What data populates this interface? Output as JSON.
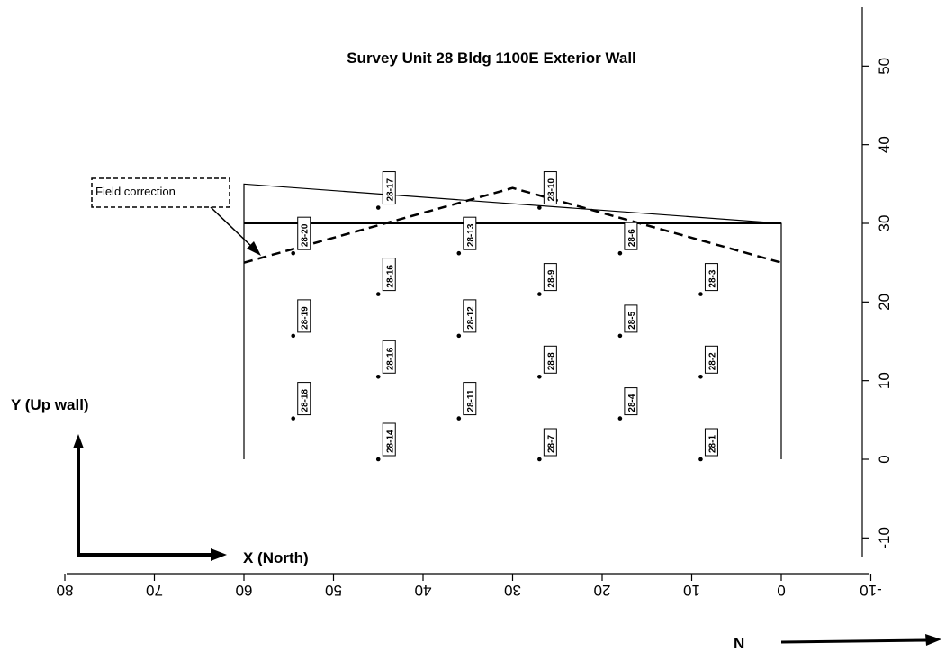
{
  "title": "Survey Unit 28 Bldg 1100E Exterior Wall",
  "x_axis_label": "X (North)",
  "y_axis_label": "Y (Up wall)",
  "north_label": "N",
  "callout": "Field correction",
  "chart_data": {
    "type": "scatter",
    "x_ticks": [
      80,
      70,
      60,
      50,
      40,
      30,
      20,
      10,
      0,
      -10
    ],
    "y_ticks": [
      50,
      40,
      30,
      20,
      10,
      0,
      -10
    ],
    "x_tick_labels": [
      "80",
      "70",
      "60",
      "50",
      "40",
      "30",
      "20",
      "10",
      "0",
      "-10"
    ],
    "y_tick_labels": [
      "50",
      "40",
      "30",
      "20",
      "10",
      "0",
      "-10"
    ],
    "xlim": [
      80,
      -10
    ],
    "ylim": [
      -10,
      55
    ],
    "wall_outline": [
      [
        60,
        0
      ],
      [
        60,
        35
      ],
      [
        0,
        30
      ],
      [
        0,
        0
      ]
    ],
    "inner_line": [
      [
        60,
        30
      ],
      [
        0,
        30
      ]
    ],
    "field_correction": [
      [
        60,
        25
      ],
      [
        30,
        34.5
      ],
      [
        0,
        25
      ]
    ],
    "points": [
      {
        "label": "28-1",
        "x": 9,
        "y": 0
      },
      {
        "label": "28-2",
        "x": 9,
        "y": 10.5
      },
      {
        "label": "28-3",
        "x": 9,
        "y": 21
      },
      {
        "label": "28-4",
        "x": 18,
        "y": 5.2
      },
      {
        "label": "28-5",
        "x": 18,
        "y": 15.7
      },
      {
        "label": "28-6",
        "x": 18,
        "y": 26.2
      },
      {
        "label": "28-7",
        "x": 27,
        "y": 0
      },
      {
        "label": "28-8",
        "x": 27,
        "y": 10.5
      },
      {
        "label": "28-9",
        "x": 27,
        "y": 21
      },
      {
        "label": "28-10",
        "x": 27,
        "y": 32
      },
      {
        "label": "28-11",
        "x": 36,
        "y": 5.2
      },
      {
        "label": "28-12",
        "x": 36,
        "y": 15.7
      },
      {
        "label": "28-13",
        "x": 36,
        "y": 26.2
      },
      {
        "label": "28-14",
        "x": 45,
        "y": 0
      },
      {
        "label": "28-16",
        "x": 45,
        "y": 10.5
      },
      {
        "label": "28-16",
        "x": 45,
        "y": 21
      },
      {
        "label": "28-17",
        "x": 45,
        "y": 32
      },
      {
        "label": "28-18",
        "x": 54.5,
        "y": 5.2
      },
      {
        "label": "28-19",
        "x": 54.5,
        "y": 15.7
      },
      {
        "label": "28-20",
        "x": 54.5,
        "y": 26.2
      }
    ]
  }
}
